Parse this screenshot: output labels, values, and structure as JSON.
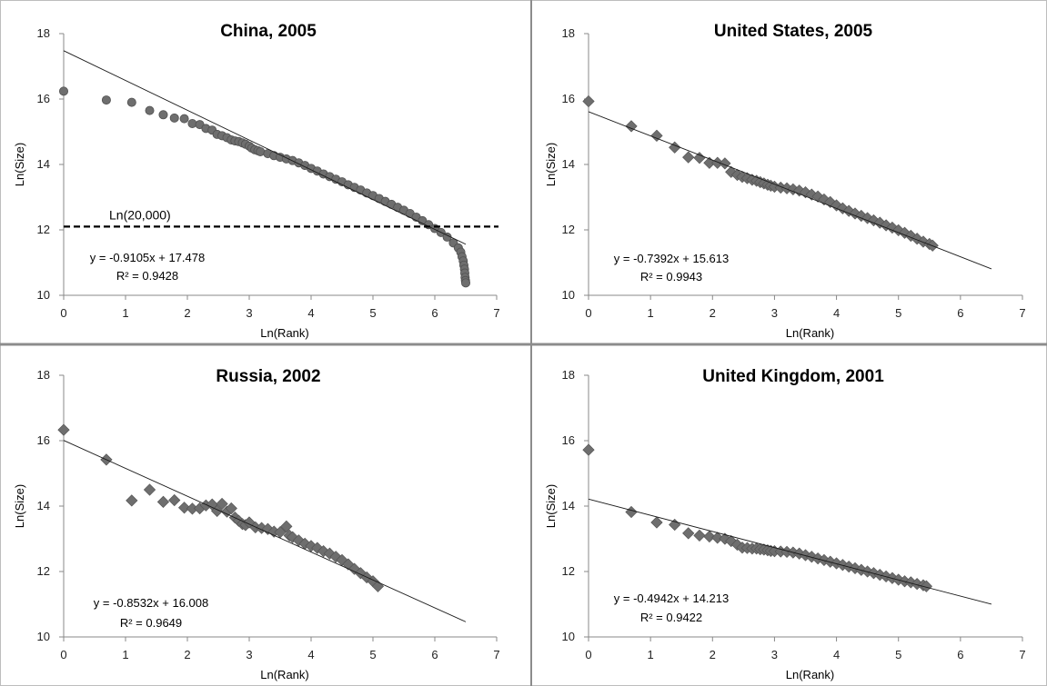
{
  "chart_data": [
    {
      "type": "scatter",
      "title": "China, 2005",
      "xlabel": "Ln(Rank)",
      "ylabel": "Ln(Size)",
      "xlim": [
        0,
        7
      ],
      "ylim": [
        10,
        18
      ],
      "xticks": [
        "0",
        "1",
        "2",
        "3",
        "4",
        "5",
        "6",
        "7"
      ],
      "yticks": [
        "10",
        "12",
        "14",
        "16",
        "18"
      ],
      "marker": "circle",
      "trendline": {
        "slope": -0.9105,
        "intercept": 17.478,
        "x_range": [
          0,
          6.5
        ]
      },
      "equation_label": "y = -0.9105x + 17.478",
      "r2_label": "R² = 0.9428",
      "threshold": {
        "y": 12.1,
        "label": "Ln(20,000)"
      },
      "points": [
        [
          0,
          16.24
        ],
        [
          0.69,
          15.97
        ],
        [
          1.1,
          15.9
        ],
        [
          1.39,
          15.65
        ],
        [
          1.61,
          15.52
        ],
        [
          1.79,
          15.42
        ],
        [
          1.95,
          15.4
        ],
        [
          2.08,
          15.25
        ],
        [
          2.2,
          15.22
        ],
        [
          2.3,
          15.1
        ],
        [
          2.4,
          15.05
        ],
        [
          2.48,
          14.92
        ],
        [
          2.56,
          14.88
        ],
        [
          2.64,
          14.82
        ],
        [
          2.71,
          14.75
        ],
        [
          2.77,
          14.72
        ],
        [
          2.83,
          14.7
        ],
        [
          2.89,
          14.66
        ],
        [
          2.94,
          14.62
        ],
        [
          3.0,
          14.56
        ],
        [
          3.04,
          14.5
        ],
        [
          3.09,
          14.45
        ],
        [
          3.14,
          14.42
        ],
        [
          3.18,
          14.39
        ],
        [
          3.3,
          14.33
        ],
        [
          3.4,
          14.27
        ],
        [
          3.5,
          14.22
        ],
        [
          3.6,
          14.17
        ],
        [
          3.7,
          14.12
        ],
        [
          3.8,
          14.05
        ],
        [
          3.9,
          13.97
        ],
        [
          4.0,
          13.88
        ],
        [
          4.1,
          13.8
        ],
        [
          4.2,
          13.71
        ],
        [
          4.3,
          13.63
        ],
        [
          4.4,
          13.55
        ],
        [
          4.5,
          13.47
        ],
        [
          4.6,
          13.38
        ],
        [
          4.7,
          13.3
        ],
        [
          4.8,
          13.22
        ],
        [
          4.9,
          13.13
        ],
        [
          5.0,
          13.05
        ],
        [
          5.1,
          12.96
        ],
        [
          5.2,
          12.87
        ],
        [
          5.3,
          12.78
        ],
        [
          5.4,
          12.69
        ],
        [
          5.5,
          12.6
        ],
        [
          5.6,
          12.5
        ],
        [
          5.7,
          12.39
        ],
        [
          5.8,
          12.28
        ],
        [
          5.9,
          12.16
        ],
        [
          6.0,
          12.04
        ],
        [
          6.1,
          11.92
        ],
        [
          6.2,
          11.78
        ],
        [
          6.3,
          11.6
        ],
        [
          6.38,
          11.45
        ],
        [
          6.42,
          11.32
        ],
        [
          6.44,
          11.18
        ],
        [
          6.46,
          11.05
        ],
        [
          6.47,
          10.92
        ],
        [
          6.48,
          10.8
        ],
        [
          6.485,
          10.68
        ],
        [
          6.49,
          10.55
        ],
        [
          6.495,
          10.45
        ],
        [
          6.5,
          10.38
        ]
      ]
    },
    {
      "type": "scatter",
      "title": "United States, 2005",
      "xlabel": "Ln(Rank)",
      "ylabel": "Ln(Size)",
      "xlim": [
        0,
        7
      ],
      "ylim": [
        10,
        18
      ],
      "xticks": [
        "0",
        "1",
        "2",
        "3",
        "4",
        "5",
        "6",
        "7"
      ],
      "yticks": [
        "10",
        "12",
        "14",
        "16",
        "18"
      ],
      "marker": "diamond",
      "trendline": {
        "slope": -0.7392,
        "intercept": 15.613,
        "x_range": [
          0,
          6.5
        ]
      },
      "equation_label": "y = -0.7392x + 15.613",
      "r2_label": "R² = 0.9943",
      "points": [
        [
          0,
          15.93
        ],
        [
          0.69,
          15.17
        ],
        [
          1.1,
          14.88
        ],
        [
          1.39,
          14.52
        ],
        [
          1.61,
          14.22
        ],
        [
          1.79,
          14.2
        ],
        [
          1.95,
          14.05
        ],
        [
          2.08,
          14.05
        ],
        [
          2.2,
          14.03
        ],
        [
          2.3,
          13.77
        ],
        [
          2.4,
          13.68
        ],
        [
          2.48,
          13.62
        ],
        [
          2.56,
          13.58
        ],
        [
          2.64,
          13.53
        ],
        [
          2.71,
          13.5
        ],
        [
          2.77,
          13.46
        ],
        [
          2.83,
          13.42
        ],
        [
          2.89,
          13.38
        ],
        [
          2.94,
          13.35
        ],
        [
          3.0,
          13.32
        ],
        [
          3.1,
          13.29
        ],
        [
          3.2,
          13.27
        ],
        [
          3.3,
          13.24
        ],
        [
          3.4,
          13.2
        ],
        [
          3.5,
          13.15
        ],
        [
          3.6,
          13.08
        ],
        [
          3.7,
          13.02
        ],
        [
          3.8,
          12.93
        ],
        [
          3.9,
          12.85
        ],
        [
          4.0,
          12.75
        ],
        [
          4.1,
          12.66
        ],
        [
          4.2,
          12.58
        ],
        [
          4.3,
          12.5
        ],
        [
          4.4,
          12.43
        ],
        [
          4.5,
          12.36
        ],
        [
          4.6,
          12.29
        ],
        [
          4.7,
          12.22
        ],
        [
          4.8,
          12.14
        ],
        [
          4.9,
          12.07
        ],
        [
          5.0,
          11.99
        ],
        [
          5.1,
          11.91
        ],
        [
          5.2,
          11.82
        ],
        [
          5.3,
          11.73
        ],
        [
          5.4,
          11.64
        ],
        [
          5.5,
          11.57
        ],
        [
          5.55,
          11.52
        ]
      ]
    },
    {
      "type": "scatter",
      "title": "Russia, 2002",
      "xlabel": "Ln(Rank)",
      "ylabel": "Ln(Size)",
      "xlim": [
        0,
        7
      ],
      "ylim": [
        10,
        18
      ],
      "xticks": [
        "0",
        "1",
        "2",
        "3",
        "4",
        "5",
        "6",
        "7"
      ],
      "yticks": [
        "10",
        "12",
        "14",
        "16",
        "18"
      ],
      "marker": "diamond",
      "trendline": {
        "slope": -0.8532,
        "intercept": 16.008,
        "x_range": [
          0,
          6.5
        ]
      },
      "equation_label": "y = -0.8532x + 16.008",
      "r2_label": "R² = 0.9649",
      "points": [
        [
          0,
          16.33
        ],
        [
          0.69,
          15.42
        ],
        [
          1.1,
          14.17
        ],
        [
          1.39,
          14.5
        ],
        [
          1.61,
          14.13
        ],
        [
          1.79,
          14.18
        ],
        [
          1.95,
          13.95
        ],
        [
          2.08,
          13.92
        ],
        [
          2.2,
          13.93
        ],
        [
          2.3,
          14.02
        ],
        [
          2.4,
          14.05
        ],
        [
          2.48,
          13.85
        ],
        [
          2.56,
          14.07
        ],
        [
          2.64,
          13.83
        ],
        [
          2.71,
          13.93
        ],
        [
          2.77,
          13.65
        ],
        [
          2.83,
          13.55
        ],
        [
          2.89,
          13.45
        ],
        [
          2.94,
          13.42
        ],
        [
          3.0,
          13.5
        ],
        [
          3.1,
          13.35
        ],
        [
          3.2,
          13.33
        ],
        [
          3.3,
          13.3
        ],
        [
          3.4,
          13.22
        ],
        [
          3.5,
          13.2
        ],
        [
          3.6,
          13.38
        ],
        [
          3.65,
          13.1
        ],
        [
          3.7,
          13.05
        ],
        [
          3.8,
          12.95
        ],
        [
          3.9,
          12.85
        ],
        [
          4.0,
          12.78
        ],
        [
          4.1,
          12.72
        ],
        [
          4.2,
          12.62
        ],
        [
          4.3,
          12.55
        ],
        [
          4.4,
          12.45
        ],
        [
          4.5,
          12.35
        ],
        [
          4.6,
          12.22
        ],
        [
          4.7,
          12.08
        ],
        [
          4.8,
          11.95
        ],
        [
          4.9,
          11.82
        ],
        [
          5.0,
          11.7
        ],
        [
          5.08,
          11.55
        ]
      ]
    },
    {
      "type": "scatter",
      "title": "United Kingdom, 2001",
      "xlabel": "Ln(Rank)",
      "ylabel": "Ln(Size)",
      "xlim": [
        0,
        7
      ],
      "ylim": [
        10,
        18
      ],
      "xticks": [
        "0",
        "1",
        "2",
        "3",
        "4",
        "5",
        "6",
        "7"
      ],
      "yticks": [
        "10",
        "12",
        "14",
        "16",
        "18"
      ],
      "marker": "diamond",
      "trendline": {
        "slope": -0.4942,
        "intercept": 14.213,
        "x_range": [
          0,
          6.5
        ]
      },
      "equation_label": "y = -0.4942x + 14.213",
      "r2_label": "R² = 0.9422",
      "points": [
        [
          0,
          15.72
        ],
        [
          0.69,
          13.82
        ],
        [
          1.1,
          13.5
        ],
        [
          1.39,
          13.43
        ],
        [
          1.61,
          13.17
        ],
        [
          1.79,
          13.1
        ],
        [
          1.95,
          13.07
        ],
        [
          2.08,
          13.03
        ],
        [
          2.2,
          13.0
        ],
        [
          2.3,
          12.93
        ],
        [
          2.4,
          12.82
        ],
        [
          2.48,
          12.73
        ],
        [
          2.56,
          12.72
        ],
        [
          2.64,
          12.7
        ],
        [
          2.71,
          12.7
        ],
        [
          2.77,
          12.68
        ],
        [
          2.83,
          12.67
        ],
        [
          2.89,
          12.65
        ],
        [
          2.94,
          12.63
        ],
        [
          3.0,
          12.62
        ],
        [
          3.1,
          12.61
        ],
        [
          3.2,
          12.6
        ],
        [
          3.3,
          12.58
        ],
        [
          3.4,
          12.55
        ],
        [
          3.5,
          12.5
        ],
        [
          3.6,
          12.45
        ],
        [
          3.7,
          12.4
        ],
        [
          3.8,
          12.35
        ],
        [
          3.9,
          12.3
        ],
        [
          4.0,
          12.25
        ],
        [
          4.1,
          12.2
        ],
        [
          4.2,
          12.15
        ],
        [
          4.3,
          12.1
        ],
        [
          4.4,
          12.05
        ],
        [
          4.5,
          12.0
        ],
        [
          4.6,
          11.95
        ],
        [
          4.7,
          11.9
        ],
        [
          4.8,
          11.85
        ],
        [
          4.9,
          11.8
        ],
        [
          5.0,
          11.75
        ],
        [
          5.1,
          11.7
        ],
        [
          5.2,
          11.67
        ],
        [
          5.3,
          11.62
        ],
        [
          5.4,
          11.58
        ],
        [
          5.45,
          11.55
        ]
      ]
    }
  ]
}
